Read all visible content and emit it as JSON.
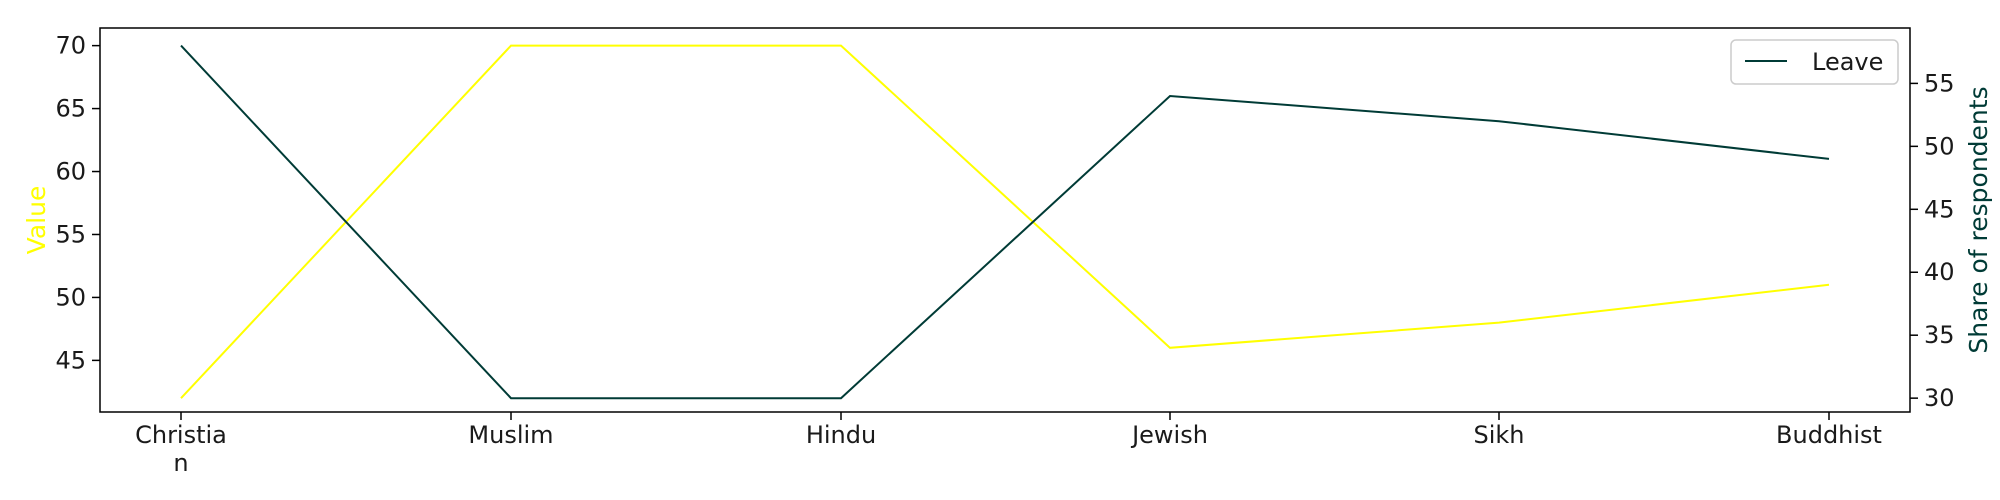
{
  "chart_data": {
    "type": "line",
    "categories": [
      [
        "Christia",
        "n"
      ],
      [
        "Muslim"
      ],
      [
        "Hindu"
      ],
      [
        "Jewish"
      ],
      [
        "Sikh"
      ],
      [
        "Buddhist"
      ]
    ],
    "series": [
      {
        "axis": "left",
        "color": "#ffff00",
        "values": [
          42,
          70,
          70,
          46,
          48,
          51
        ]
      },
      {
        "name": "Leave",
        "axis": "right",
        "color": "#003b36",
        "values": [
          58,
          30,
          30,
          54,
          52,
          49
        ]
      }
    ],
    "y_left": {
      "label": "Value",
      "ylim": [
        40.9,
        71.4
      ],
      "ticks": [
        45,
        50,
        55,
        60,
        65,
        70
      ],
      "color": "#ffff00"
    },
    "y_right": {
      "label": "Share of respondents",
      "ylim": [
        28.9,
        59.4
      ],
      "ticks": [
        30,
        35,
        40,
        45,
        50,
        55
      ],
      "color": "#003b36"
    },
    "grid": false,
    "legend": {
      "placement": "top-right",
      "entries": [
        "Leave"
      ]
    }
  }
}
